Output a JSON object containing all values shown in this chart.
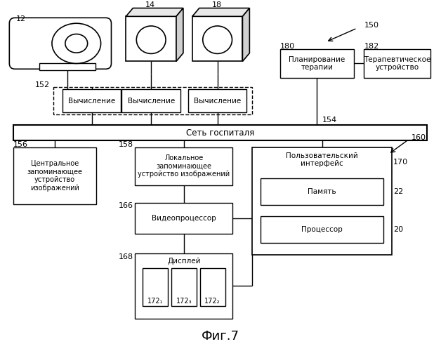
{
  "title": "Фиг.7",
  "bg_color": "#ffffff",
  "label_12": "12",
  "label_14": "14",
  "label_18": "18",
  "label_150": "150",
  "label_152": "152",
  "label_154": "154",
  "label_156": "156",
  "label_158": "158",
  "label_160": "160",
  "label_166": "166",
  "label_168": "168",
  "label_170": "170",
  "label_172_1": "172₁",
  "label_172_2": "172₂",
  "label_172_3": "172₃",
  "label_180": "180",
  "label_182": "182",
  "label_22": "22",
  "label_20": "20",
  "text_network": "Сеть госпиталя",
  "text_vychislenie": "Вычисление",
  "text_central": "Центральное\nзапоминающее\nустройство\nизображений",
  "text_local": "Локальное\nзапоминающее\nустройство изображений",
  "text_videoproc": "Видеопроцессор",
  "text_display": "Дисплей",
  "text_user_iface": "Пользовательский\nинтерфейс",
  "text_memory": "Память",
  "text_processor": "Процессор",
  "text_plan_therapy": "Планирование\nтерапии",
  "text_therapeutic": "Терапевтическое\nустройство"
}
